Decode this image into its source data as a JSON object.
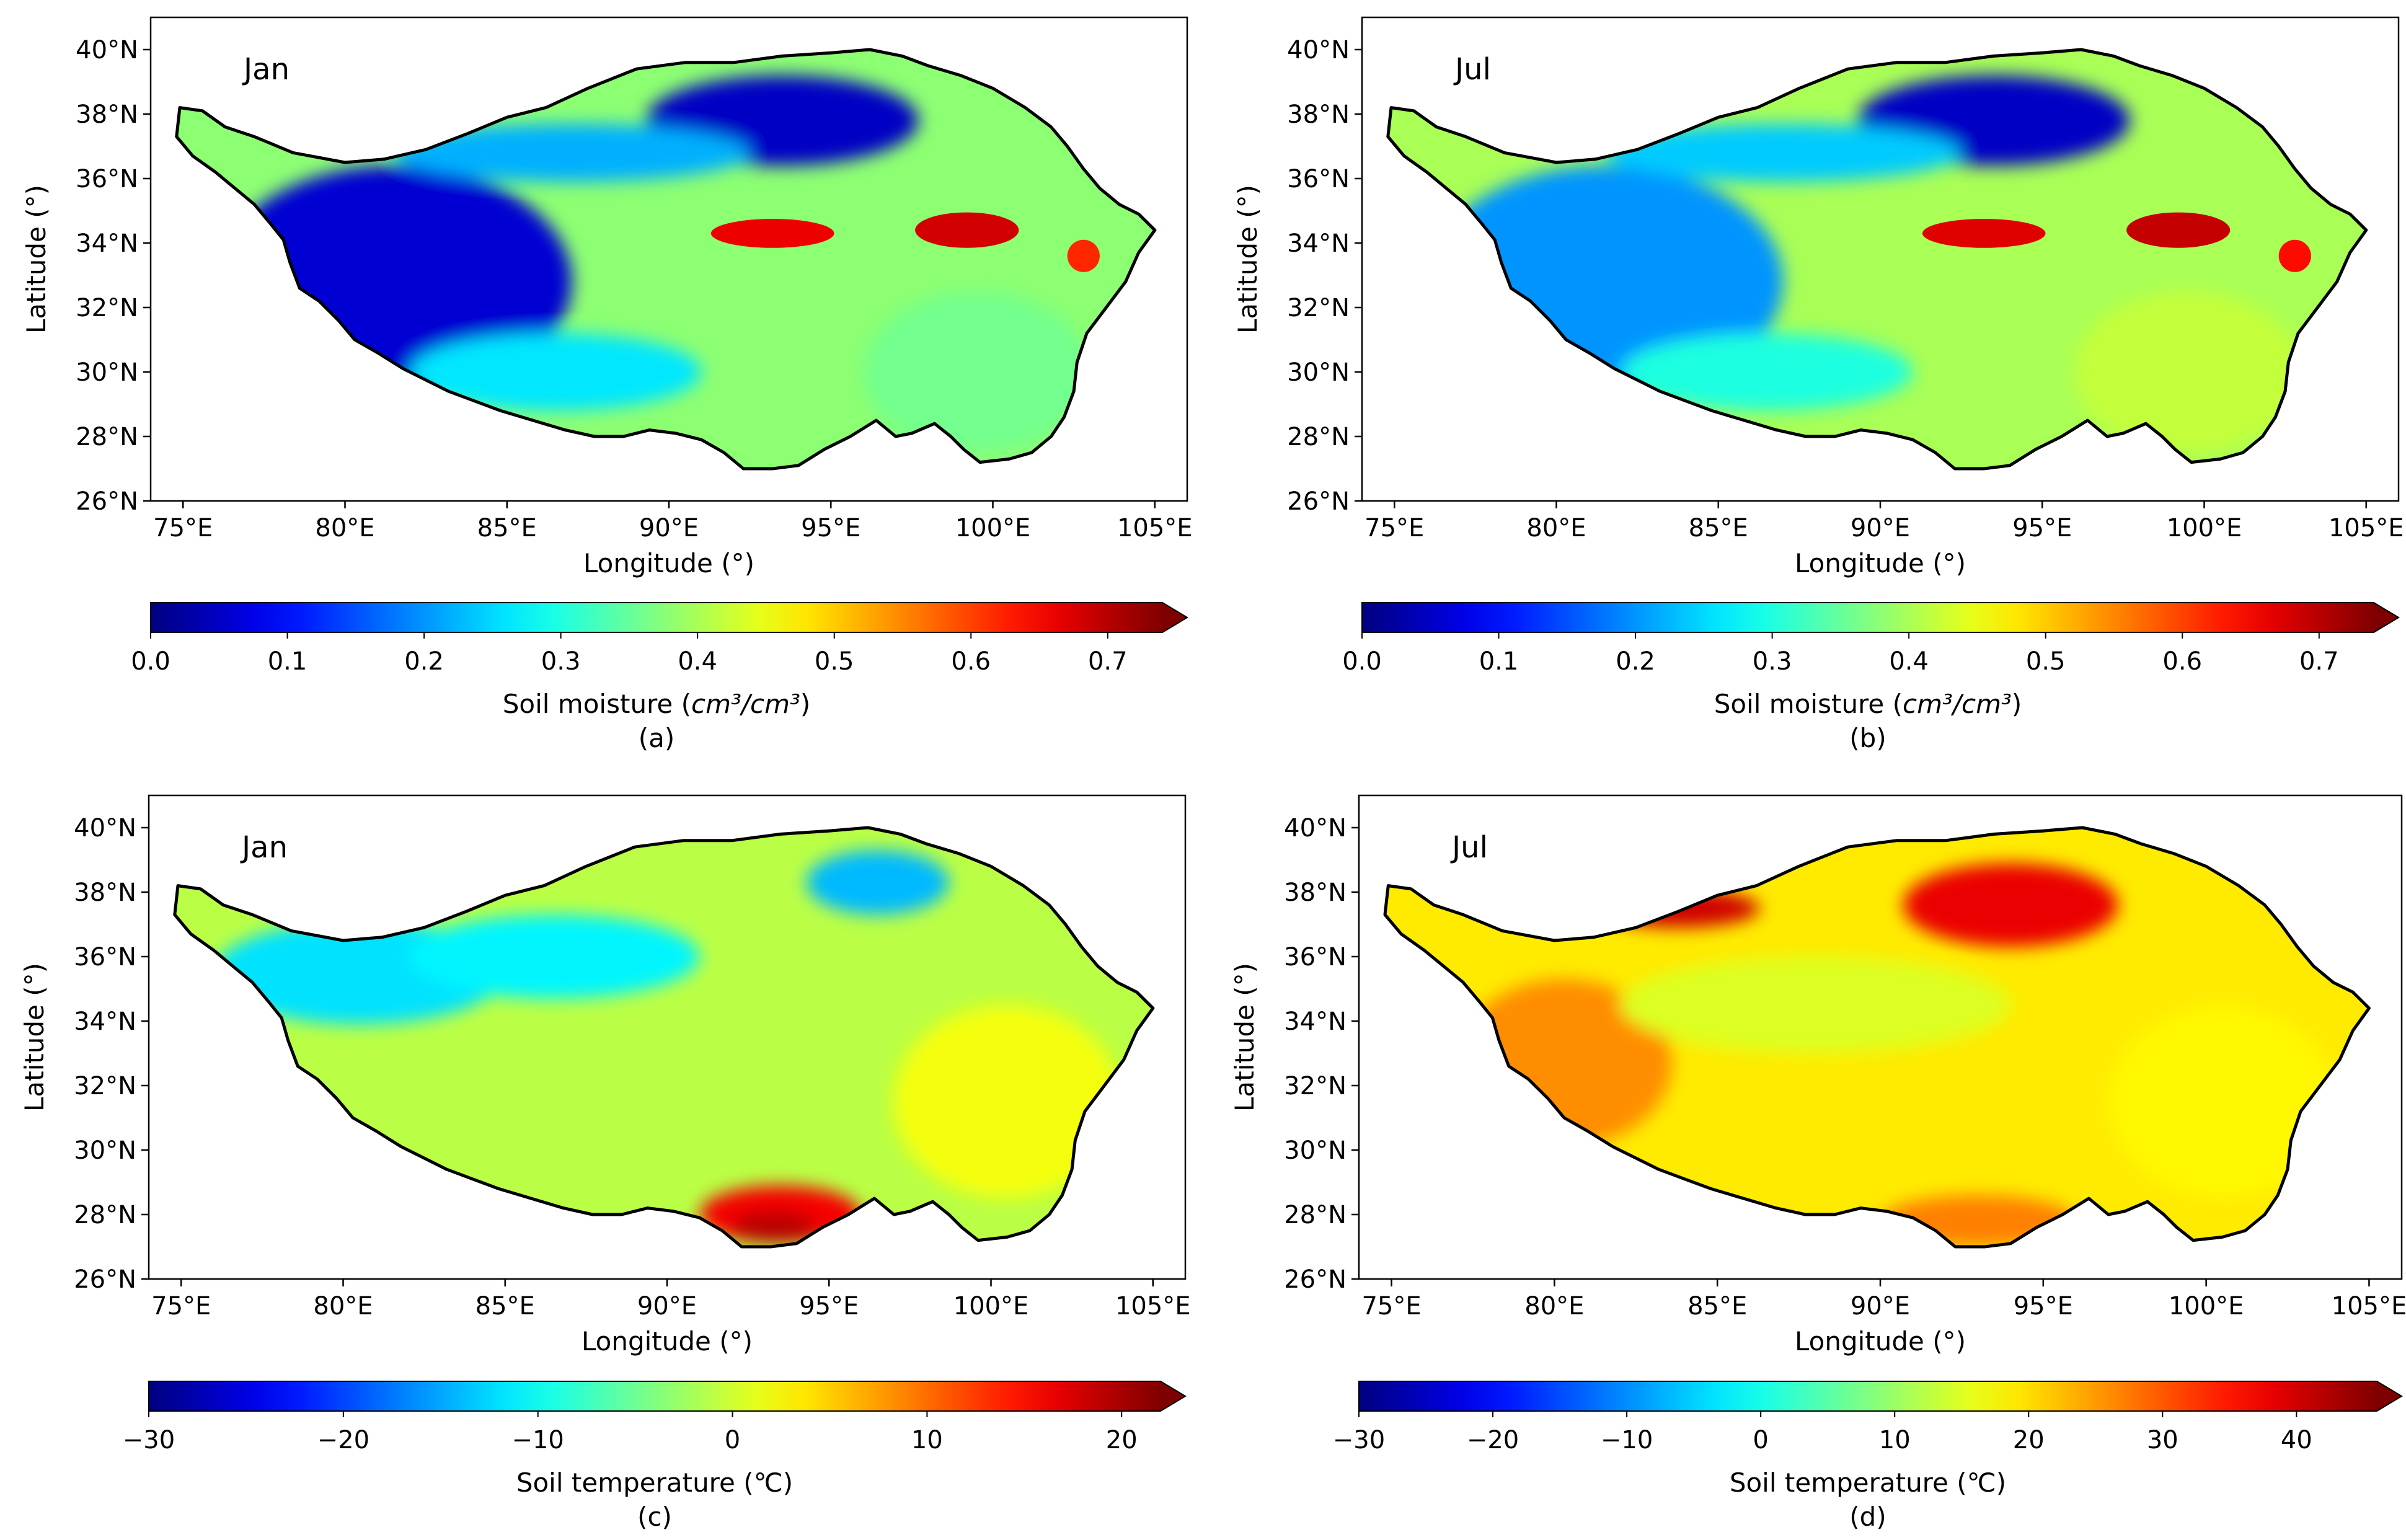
{
  "chart_data": [
    {
      "type": "heatmap",
      "panel_label": "(a)",
      "month": "Jan",
      "variable": "Soil moisture",
      "xlabel": "Longitude (°)",
      "ylabel": "Latitude (°)",
      "xlim": [
        74,
        106
      ],
      "ylim": [
        26,
        41
      ],
      "x_ticks": [
        75,
        80,
        85,
        90,
        95,
        100,
        105
      ],
      "x_tick_labels": [
        "75°E",
        "80°E",
        "85°E",
        "90°E",
        "95°E",
        "100°E",
        "105°E"
      ],
      "y_ticks": [
        26,
        28,
        30,
        32,
        34,
        36,
        38,
        40
      ],
      "y_tick_labels": [
        "26°N",
        "28°N",
        "30°N",
        "32°N",
        "34°N",
        "36°N",
        "38°N",
        "40°N"
      ],
      "colorbar": {
        "label_prefix": "Soil moisture (",
        "label_unit": "cm³/cm³",
        "label_suffix": ")",
        "range": [
          0,
          0.74
        ],
        "ticks": [
          0,
          0.1,
          0.2,
          0.3,
          0.4,
          0.5,
          0.6,
          0.7
        ],
        "tick_labels": [
          "0.0",
          "0.1",
          "0.2",
          "0.3",
          "0.4",
          "0.5",
          "0.6",
          "0.7"
        ],
        "extend": "max",
        "colormap": "jet"
      },
      "regions": [
        {
          "name": "background",
          "value": 0.38
        },
        {
          "name": "dry-west",
          "value": 0.06
        },
        {
          "name": "qaidam-basin",
          "value": 0.05
        },
        {
          "name": "north-strip",
          "value": 0.22
        },
        {
          "name": "southwest-band",
          "value": 0.26
        },
        {
          "name": "southeast-moist",
          "value": 0.36
        },
        {
          "name": "wet-patch-central",
          "value": 0.66
        },
        {
          "name": "wet-patch-east",
          "value": 0.68
        },
        {
          "name": "wet-patch-far-east",
          "value": 0.62
        }
      ]
    },
    {
      "type": "heatmap",
      "panel_label": "(b)",
      "month": "Jul",
      "variable": "Soil moisture",
      "xlabel": "Longitude (°)",
      "ylabel": "Latitude (°)",
      "xlim": [
        74,
        106
      ],
      "ylim": [
        26,
        41
      ],
      "x_ticks": [
        75,
        80,
        85,
        90,
        95,
        100,
        105
      ],
      "x_tick_labels": [
        "75°E",
        "80°E",
        "85°E",
        "90°E",
        "95°E",
        "100°E",
        "105°E"
      ],
      "y_ticks": [
        26,
        28,
        30,
        32,
        34,
        36,
        38,
        40
      ],
      "y_tick_labels": [
        "26°N",
        "28°N",
        "30°N",
        "32°N",
        "34°N",
        "36°N",
        "38°N",
        "40°N"
      ],
      "colorbar": {
        "label_prefix": "Soil moisture (",
        "label_unit": "cm³/cm³",
        "label_suffix": ")",
        "range": [
          0,
          0.74
        ],
        "ticks": [
          0,
          0.1,
          0.2,
          0.3,
          0.4,
          0.5,
          0.6,
          0.7
        ],
        "tick_labels": [
          "0.0",
          "0.1",
          "0.2",
          "0.3",
          "0.4",
          "0.5",
          "0.6",
          "0.7"
        ],
        "extend": "max",
        "colormap": "jet"
      },
      "regions": [
        {
          "name": "background",
          "value": 0.4
        },
        {
          "name": "dry-west",
          "value": 0.2
        },
        {
          "name": "qaidam-basin",
          "value": 0.05
        },
        {
          "name": "north-strip",
          "value": 0.24
        },
        {
          "name": "southwest-band",
          "value": 0.3
        },
        {
          "name": "southeast-moist",
          "value": 0.42
        },
        {
          "name": "wet-patch-central",
          "value": 0.67
        },
        {
          "name": "wet-patch-east",
          "value": 0.69
        },
        {
          "name": "wet-patch-far-east",
          "value": 0.64
        }
      ]
    },
    {
      "type": "heatmap",
      "panel_label": "(c)",
      "month": "Jan",
      "variable": "Soil temperature",
      "xlabel": "Longitude (°)",
      "ylabel": "Latitude (°)",
      "xlim": [
        74,
        106
      ],
      "ylim": [
        26,
        41
      ],
      "x_ticks": [
        75,
        80,
        85,
        90,
        95,
        100,
        105
      ],
      "x_tick_labels": [
        "75°E",
        "80°E",
        "85°E",
        "90°E",
        "95°E",
        "100°E",
        "105°E"
      ],
      "y_ticks": [
        26,
        28,
        30,
        32,
        34,
        36,
        38,
        40
      ],
      "y_tick_labels": [
        "26°N",
        "28°N",
        "30°N",
        "32°N",
        "34°N",
        "36°N",
        "38°N",
        "40°N"
      ],
      "colorbar": {
        "label_prefix": "Soil temperature (℃)",
        "label_unit": "",
        "label_suffix": "",
        "range": [
          -30,
          22
        ],
        "ticks": [
          -30,
          -20,
          -10,
          0,
          10,
          20
        ],
        "tick_labels": [
          "−30",
          "−20",
          "−10",
          "0",
          "10",
          "20"
        ],
        "extend": "max",
        "colormap": "jet"
      },
      "regions": [
        {
          "name": "background",
          "value": -1
        },
        {
          "name": "west-cold",
          "value": -12
        },
        {
          "name": "central-north-cold",
          "value": -11
        },
        {
          "name": "qaidam-cold",
          "value": -14
        },
        {
          "name": "east-mild",
          "value": 2
        },
        {
          "name": "south-warm-valley",
          "value": 16
        },
        {
          "name": "south-hot-spot",
          "value": 19
        }
      ]
    },
    {
      "type": "heatmap",
      "panel_label": "(d)",
      "month": "Jul",
      "variable": "Soil temperature",
      "xlabel": "Longitude (°)",
      "ylabel": "Latitude (°)",
      "xlim": [
        74,
        106
      ],
      "ylim": [
        26,
        41
      ],
      "x_ticks": [
        75,
        80,
        85,
        90,
        95,
        100,
        105
      ],
      "x_tick_labels": [
        "75°E",
        "80°E",
        "85°E",
        "90°E",
        "95°E",
        "100°E",
        "105°E"
      ],
      "y_ticks": [
        26,
        28,
        30,
        32,
        34,
        36,
        38,
        40
      ],
      "y_tick_labels": [
        "26°N",
        "28°N",
        "30°N",
        "32°N",
        "34°N",
        "36°N",
        "38°N",
        "40°N"
      ],
      "colorbar": {
        "label_prefix": "Soil temperature (℃)",
        "label_unit": "",
        "label_suffix": "",
        "range": [
          -30,
          46
        ],
        "ticks": [
          -30,
          -20,
          -10,
          0,
          10,
          20,
          30,
          40
        ],
        "tick_labels": [
          "−30",
          "−20",
          "−10",
          "0",
          "10",
          "20",
          "30",
          "40"
        ],
        "extend": "max",
        "colormap": "jet"
      },
      "regions": [
        {
          "name": "background",
          "value": 19
        },
        {
          "name": "west-warm",
          "value": 26
        },
        {
          "name": "central-band",
          "value": 15
        },
        {
          "name": "qaidam-hot",
          "value": 38
        },
        {
          "name": "north-rim-hot",
          "value": 40
        },
        {
          "name": "east-mild",
          "value": 18
        },
        {
          "name": "south-warm",
          "value": 27
        }
      ]
    }
  ]
}
